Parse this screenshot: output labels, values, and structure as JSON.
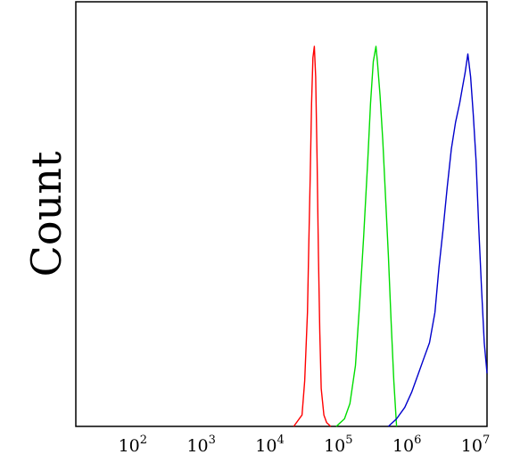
{
  "chart_data": {
    "type": "line",
    "title": "",
    "xlabel": "",
    "ylabel": "Count",
    "x_scale": "log",
    "xlim": [
      10,
      10000000
    ],
    "ylim": [
      0,
      1
    ],
    "grid": false,
    "legend": "none",
    "x_ticks": [
      {
        "value": 100,
        "base": "10",
        "exp": "2"
      },
      {
        "value": 1000,
        "base": "10",
        "exp": "3"
      },
      {
        "value": 10000,
        "base": "10",
        "exp": "4"
      },
      {
        "value": 100000,
        "base": "10",
        "exp": "5"
      },
      {
        "value": 1000000,
        "base": "10",
        "exp": "6"
      },
      {
        "value": 10000000,
        "base": "10",
        "exp": "7"
      }
    ],
    "series": [
      {
        "color": "#ff0000",
        "x": [
          15136,
          19953,
          21878,
          23988,
          25119,
          26303,
          27542,
          28840,
          30200,
          31623,
          33113,
          34674,
          36308,
          38019,
          41687,
          45709,
          52481
        ],
        "y": [
          0.0,
          0.03,
          0.12,
          0.3,
          0.48,
          0.66,
          0.85,
          0.97,
          1.0,
          0.92,
          0.7,
          0.45,
          0.25,
          0.1,
          0.03,
          0.01,
          0.0
        ]
      },
      {
        "color": "#00dd00",
        "x": [
          63096,
          83176,
          100000,
          120226,
          138038,
          158489,
          181970,
          199526,
          218776,
          239883,
          251189,
          275423,
          301995,
          331131,
          363078,
          398107,
          436516,
          478630
        ],
        "y": [
          0.0,
          0.02,
          0.06,
          0.16,
          0.32,
          0.5,
          0.7,
          0.85,
          0.96,
          1.0,
          0.96,
          0.87,
          0.75,
          0.6,
          0.45,
          0.28,
          0.12,
          0.0
        ]
      },
      {
        "color": "#0000cc",
        "x": [
          363078,
          478630,
          630957,
          794328,
          1000000,
          1202264,
          1445440,
          1737801,
          1995262,
          2290868,
          2630268,
          3019952,
          3467369,
          3981072,
          4365158,
          4786301,
          5248075,
          5754399,
          6309573,
          6918310,
          7585776,
          8317638,
          9120108,
          10000000
        ],
        "y": [
          0.0,
          0.02,
          0.05,
          0.09,
          0.14,
          0.18,
          0.22,
          0.3,
          0.42,
          0.52,
          0.63,
          0.73,
          0.8,
          0.85,
          0.89,
          0.93,
          0.98,
          0.92,
          0.82,
          0.7,
          0.52,
          0.36,
          0.22,
          0.14
        ]
      }
    ]
  }
}
